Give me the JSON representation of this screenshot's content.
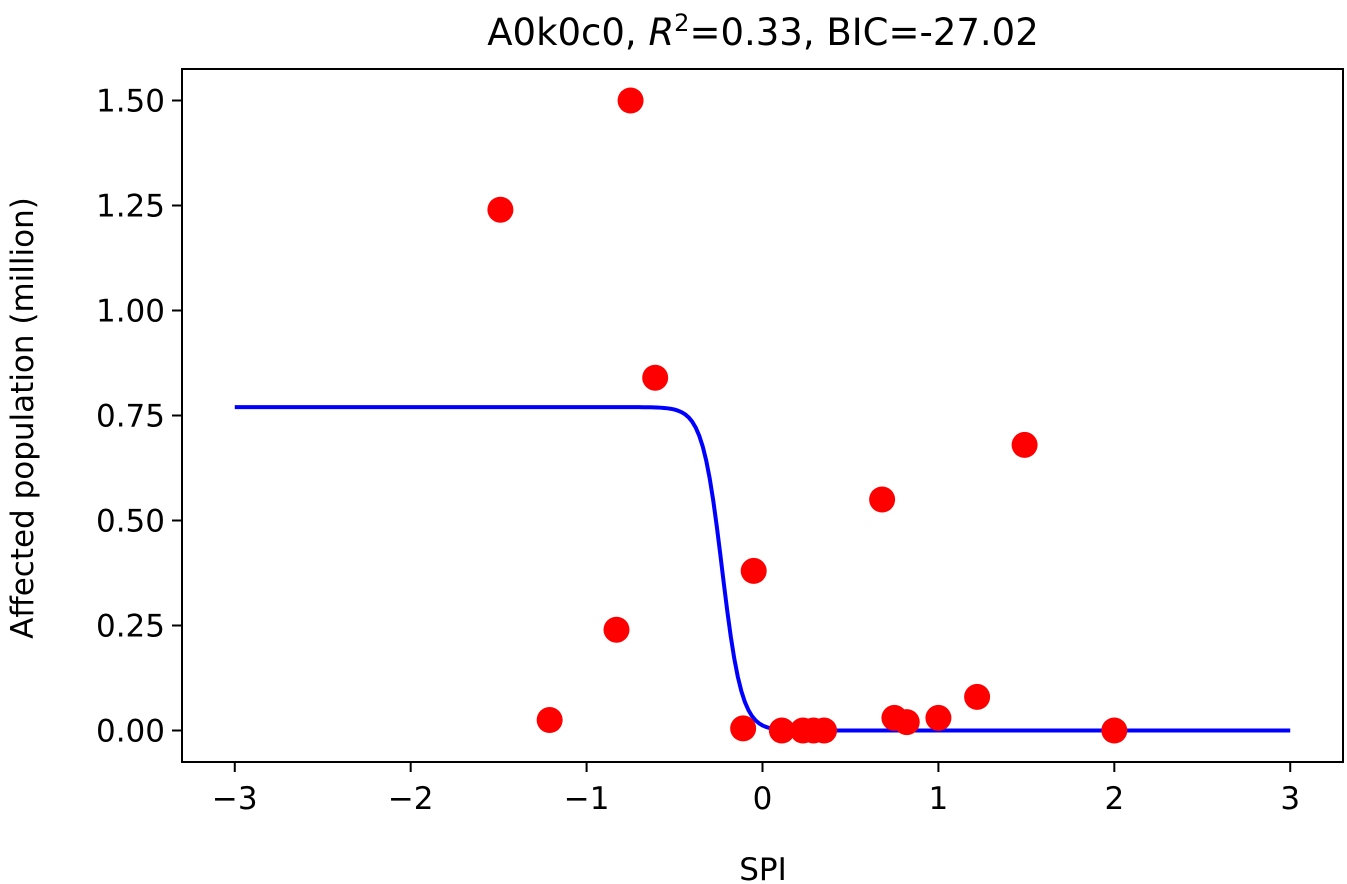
{
  "chart_data": {
    "type": "scatter",
    "title_prefix": "A0k0c0, ",
    "title_r_symbol": "R",
    "title_r_exponent": "2",
    "title_suffix": "=0.33, BIC=-27.02",
    "xlabel": "SPI",
    "ylabel": "Affected population (million)",
    "xlim": [
      -3.3,
      3.3
    ],
    "ylim": [
      -0.075,
      1.575
    ],
    "x_ticks": [
      -3,
      -2,
      -1,
      0,
      1,
      2,
      3
    ],
    "x_tick_labels": [
      "−3",
      "−2",
      "−1",
      "0",
      "1",
      "2",
      "3"
    ],
    "y_ticks": [
      0,
      0.25,
      0.5,
      0.75,
      1.0,
      1.25,
      1.5
    ],
    "y_tick_labels": [
      "0.00",
      "0.25",
      "0.50",
      "0.75",
      "1.00",
      "1.25",
      "1.50"
    ],
    "grid": false,
    "series": [
      {
        "kind": "scatter",
        "color": "#ff0000",
        "points": [
          {
            "x": -1.49,
            "y": 1.24
          },
          {
            "x": -0.75,
            "y": 1.5
          },
          {
            "x": -0.61,
            "y": 0.84
          },
          {
            "x": -0.83,
            "y": 0.24
          },
          {
            "x": -1.21,
            "y": 0.025
          },
          {
            "x": -0.05,
            "y": 0.38
          },
          {
            "x": -0.11,
            "y": 0.005
          },
          {
            "x": 0.11,
            "y": 0.0
          },
          {
            "x": 0.23,
            "y": 0.0
          },
          {
            "x": 0.29,
            "y": 0.0
          },
          {
            "x": 0.35,
            "y": 0.0
          },
          {
            "x": 0.68,
            "y": 0.55
          },
          {
            "x": 0.75,
            "y": 0.03
          },
          {
            "x": 0.82,
            "y": 0.02
          },
          {
            "x": 1.0,
            "y": 0.03
          },
          {
            "x": 1.22,
            "y": 0.08
          },
          {
            "x": 1.49,
            "y": 0.68
          },
          {
            "x": 2.0,
            "y": 0.0
          }
        ]
      },
      {
        "kind": "line",
        "color": "#0000ff",
        "model": "logistic",
        "x_range": [
          -3,
          3
        ],
        "upper": 0.77,
        "midpoint": -0.23,
        "steepness": 18
      }
    ]
  }
}
